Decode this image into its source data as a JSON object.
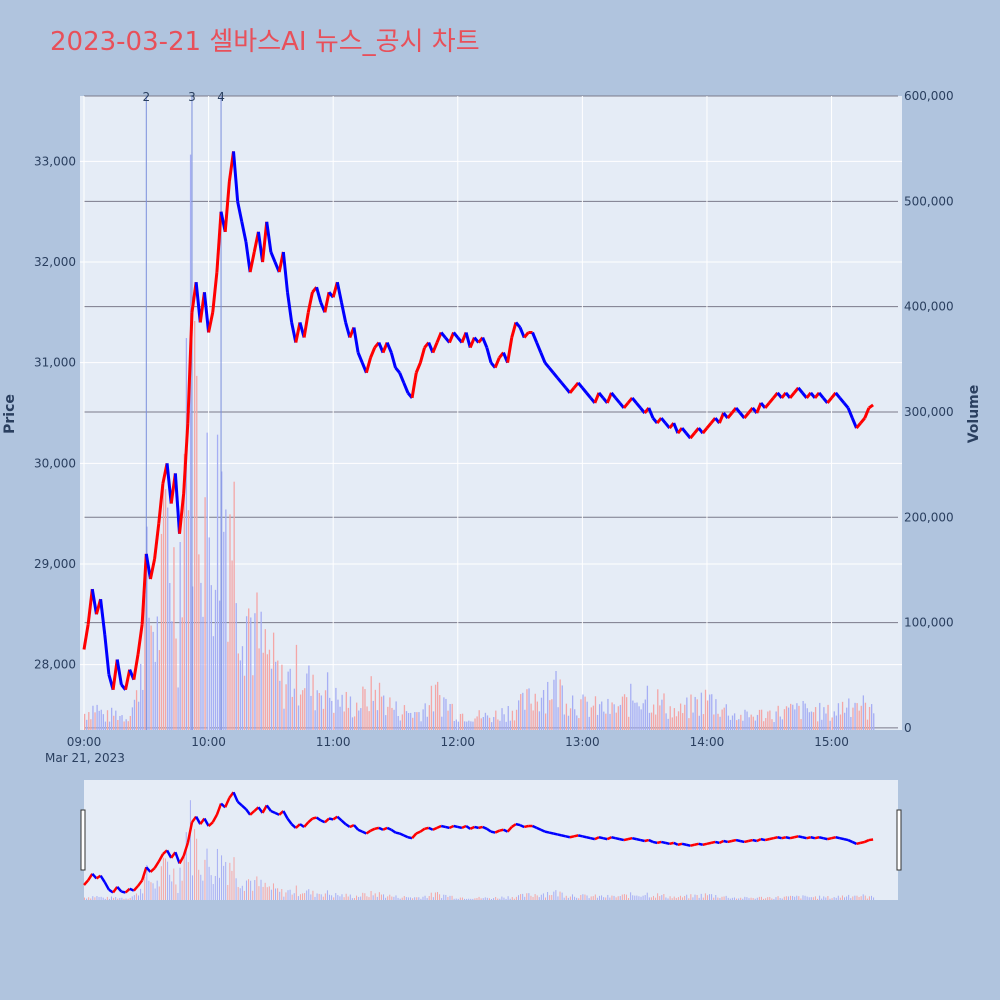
{
  "chart_data": {
    "type": "candlestick",
    "title": "2023-03-21 셀바스AI 뉴스_공시 차트",
    "ylabel": "Price",
    "y2label": "Volume",
    "date_label": "Mar 21, 2023",
    "x_ticks": [
      "09:00",
      "10:00",
      "11:00",
      "12:00",
      "13:00",
      "14:00",
      "15:00"
    ],
    "y_ticks": [
      28000,
      29000,
      30000,
      31000,
      32000,
      33000
    ],
    "y_tick_labels": [
      "28,000",
      "29,000",
      "30,000",
      "31,000",
      "32,000",
      "33,000"
    ],
    "y2_ticks": [
      0,
      100000,
      200000,
      300000,
      400000,
      500000,
      600000
    ],
    "y2_tick_labels": [
      "0",
      "100,000",
      "200,000",
      "300,000",
      "400,000",
      "500,000",
      "600,000"
    ],
    "ylim": [
      27350,
      33650
    ],
    "y2lim": [
      -2000,
      600000
    ],
    "x_range": [
      "09:00",
      "15:32"
    ],
    "up_color": "#ff0000",
    "down_color": "#0000ff",
    "news_markers": [
      {
        "label": "2",
        "time": "09:30"
      },
      {
        "label": "3",
        "time": "09:52"
      },
      {
        "label": "4",
        "time": "10:06"
      }
    ],
    "price_path": [
      [
        "09:00",
        28150
      ],
      [
        "09:02",
        28400
      ],
      [
        "09:04",
        28750
      ],
      [
        "09:06",
        28500
      ],
      [
        "09:08",
        28650
      ],
      [
        "09:10",
        28300
      ],
      [
        "09:12",
        27900
      ],
      [
        "09:14",
        27750
      ],
      [
        "09:16",
        28050
      ],
      [
        "09:18",
        27800
      ],
      [
        "09:20",
        27750
      ],
      [
        "09:22",
        27950
      ],
      [
        "09:24",
        27850
      ],
      [
        "09:26",
        28100
      ],
      [
        "09:28",
        28400
      ],
      [
        "09:30",
        29100
      ],
      [
        "09:32",
        28850
      ],
      [
        "09:34",
        29050
      ],
      [
        "09:36",
        29400
      ],
      [
        "09:38",
        29800
      ],
      [
        "09:40",
        30000
      ],
      [
        "09:42",
        29600
      ],
      [
        "09:44",
        29900
      ],
      [
        "09:46",
        29300
      ],
      [
        "09:48",
        29700
      ],
      [
        "09:50",
        30400
      ],
      [
        "09:52",
        31500
      ],
      [
        "09:54",
        31800
      ],
      [
        "09:56",
        31400
      ],
      [
        "09:58",
        31700
      ],
      [
        "10:00",
        31300
      ],
      [
        "10:02",
        31500
      ],
      [
        "10:04",
        31900
      ],
      [
        "10:06",
        32500
      ],
      [
        "10:08",
        32300
      ],
      [
        "10:10",
        32800
      ],
      [
        "10:12",
        33100
      ],
      [
        "10:14",
        32600
      ],
      [
        "10:16",
        32400
      ],
      [
        "10:18",
        32200
      ],
      [
        "10:20",
        31900
      ],
      [
        "10:22",
        32100
      ],
      [
        "10:24",
        32300
      ],
      [
        "10:26",
        32000
      ],
      [
        "10:28",
        32400
      ],
      [
        "10:30",
        32100
      ],
      [
        "10:32",
        32000
      ],
      [
        "10:34",
        31900
      ],
      [
        "10:36",
        32100
      ],
      [
        "10:38",
        31700
      ],
      [
        "10:40",
        31400
      ],
      [
        "10:42",
        31200
      ],
      [
        "10:44",
        31400
      ],
      [
        "10:46",
        31250
      ],
      [
        "10:48",
        31500
      ],
      [
        "10:50",
        31700
      ],
      [
        "10:52",
        31750
      ],
      [
        "10:54",
        31600
      ],
      [
        "10:56",
        31500
      ],
      [
        "10:58",
        31700
      ],
      [
        "11:00",
        31650
      ],
      [
        "11:02",
        31800
      ],
      [
        "11:04",
        31600
      ],
      [
        "11:06",
        31400
      ],
      [
        "11:08",
        31250
      ],
      [
        "11:10",
        31350
      ],
      [
        "11:12",
        31100
      ],
      [
        "11:14",
        31000
      ],
      [
        "11:16",
        30900
      ],
      [
        "11:18",
        31050
      ],
      [
        "11:20",
        31150
      ],
      [
        "11:22",
        31200
      ],
      [
        "11:24",
        31100
      ],
      [
        "11:26",
        31200
      ],
      [
        "11:28",
        31100
      ],
      [
        "11:30",
        30950
      ],
      [
        "11:32",
        30900
      ],
      [
        "11:34",
        30800
      ],
      [
        "11:36",
        30700
      ],
      [
        "11:38",
        30650
      ],
      [
        "11:40",
        30900
      ],
      [
        "11:42",
        31000
      ],
      [
        "11:44",
        31150
      ],
      [
        "11:46",
        31200
      ],
      [
        "11:48",
        31100
      ],
      [
        "11:50",
        31200
      ],
      [
        "11:52",
        31300
      ],
      [
        "11:54",
        31250
      ],
      [
        "11:56",
        31200
      ],
      [
        "11:58",
        31300
      ],
      [
        "12:00",
        31250
      ],
      [
        "12:02",
        31200
      ],
      [
        "12:04",
        31300
      ],
      [
        "12:06",
        31150
      ],
      [
        "12:08",
        31250
      ],
      [
        "12:10",
        31200
      ],
      [
        "12:12",
        31250
      ],
      [
        "12:14",
        31150
      ],
      [
        "12:16",
        31000
      ],
      [
        "12:18",
        30950
      ],
      [
        "12:20",
        31050
      ],
      [
        "12:22",
        31100
      ],
      [
        "12:24",
        31000
      ],
      [
        "12:26",
        31250
      ],
      [
        "12:28",
        31400
      ],
      [
        "12:30",
        31350
      ],
      [
        "12:32",
        31250
      ],
      [
        "12:34",
        31300
      ],
      [
        "12:36",
        31300
      ],
      [
        "12:38",
        31200
      ],
      [
        "12:40",
        31100
      ],
      [
        "12:42",
        31000
      ],
      [
        "12:44",
        30950
      ],
      [
        "12:46",
        30900
      ],
      [
        "12:48",
        30850
      ],
      [
        "12:50",
        30800
      ],
      [
        "12:52",
        30750
      ],
      [
        "12:54",
        30700
      ],
      [
        "12:56",
        30750
      ],
      [
        "12:58",
        30800
      ],
      [
        "13:00",
        30750
      ],
      [
        "13:02",
        30700
      ],
      [
        "13:04",
        30650
      ],
      [
        "13:06",
        30600
      ],
      [
        "13:08",
        30700
      ],
      [
        "13:10",
        30650
      ],
      [
        "13:12",
        30600
      ],
      [
        "13:14",
        30700
      ],
      [
        "13:16",
        30650
      ],
      [
        "13:18",
        30600
      ],
      [
        "13:20",
        30550
      ],
      [
        "13:22",
        30600
      ],
      [
        "13:24",
        30650
      ],
      [
        "13:26",
        30600
      ],
      [
        "13:28",
        30550
      ],
      [
        "13:30",
        30500
      ],
      [
        "13:32",
        30550
      ],
      [
        "13:34",
        30450
      ],
      [
        "13:36",
        30400
      ],
      [
        "13:38",
        30450
      ],
      [
        "13:40",
        30400
      ],
      [
        "13:42",
        30350
      ],
      [
        "13:44",
        30400
      ],
      [
        "13:46",
        30300
      ],
      [
        "13:48",
        30350
      ],
      [
        "13:50",
        30300
      ],
      [
        "13:52",
        30250
      ],
      [
        "13:54",
        30300
      ],
      [
        "13:56",
        30350
      ],
      [
        "13:58",
        30300
      ],
      [
        "14:00",
        30350
      ],
      [
        "14:02",
        30400
      ],
      [
        "14:04",
        30450
      ],
      [
        "14:06",
        30400
      ],
      [
        "14:08",
        30500
      ],
      [
        "14:10",
        30450
      ],
      [
        "14:12",
        30500
      ],
      [
        "14:14",
        30550
      ],
      [
        "14:16",
        30500
      ],
      [
        "14:18",
        30450
      ],
      [
        "14:20",
        30500
      ],
      [
        "14:22",
        30550
      ],
      [
        "14:24",
        30500
      ],
      [
        "14:26",
        30600
      ],
      [
        "14:28",
        30550
      ],
      [
        "14:30",
        30600
      ],
      [
        "14:32",
        30650
      ],
      [
        "14:34",
        30700
      ],
      [
        "14:36",
        30650
      ],
      [
        "14:38",
        30700
      ],
      [
        "14:40",
        30650
      ],
      [
        "14:42",
        30700
      ],
      [
        "14:44",
        30750
      ],
      [
        "14:46",
        30700
      ],
      [
        "14:48",
        30650
      ],
      [
        "14:50",
        30700
      ],
      [
        "14:52",
        30650
      ],
      [
        "14:54",
        30700
      ],
      [
        "14:56",
        30650
      ],
      [
        "14:58",
        30600
      ],
      [
        "15:00",
        30650
      ],
      [
        "15:02",
        30700
      ],
      [
        "15:04",
        30650
      ],
      [
        "15:06",
        30600
      ],
      [
        "15:08",
        30550
      ],
      [
        "15:10",
        30450
      ],
      [
        "15:12",
        30350
      ],
      [
        "15:14",
        30400
      ],
      [
        "15:16",
        30450
      ],
      [
        "15:18",
        30550
      ],
      [
        "15:20",
        30580
      ]
    ],
    "volume_peaks": [
      [
        "09:00",
        20000
      ],
      [
        "09:05",
        30000
      ],
      [
        "09:10",
        15000
      ],
      [
        "09:15",
        20000
      ],
      [
        "09:20",
        15000
      ],
      [
        "09:25",
        40000
      ],
      [
        "09:30",
        180000
      ],
      [
        "09:35",
        120000
      ],
      [
        "09:40",
        290000
      ],
      [
        "09:45",
        150000
      ],
      [
        "09:50",
        580000
      ],
      [
        "09:55",
        370000
      ],
      [
        "10:00",
        270000
      ],
      [
        "10:05",
        310000
      ],
      [
        "10:10",
        320000
      ],
      [
        "10:15",
        200000
      ],
      [
        "10:20",
        150000
      ],
      [
        "10:25",
        110000
      ],
      [
        "10:30",
        90000
      ],
      [
        "10:35",
        60000
      ],
      [
        "10:40",
        70000
      ],
      [
        "10:45",
        80000
      ],
      [
        "10:50",
        50000
      ],
      [
        "10:55",
        60000
      ],
      [
        "11:00",
        40000
      ],
      [
        "11:10",
        30000
      ],
      [
        "11:20",
        50000
      ],
      [
        "11:30",
        25000
      ],
      [
        "11:40",
        20000
      ],
      [
        "11:50",
        45000
      ],
      [
        "12:00",
        20000
      ],
      [
        "12:15",
        15000
      ],
      [
        "12:30",
        30000
      ],
      [
        "12:45",
        60000
      ],
      [
        "13:00",
        30000
      ],
      [
        "13:15",
        25000
      ],
      [
        "13:30",
        50000
      ],
      [
        "13:45",
        20000
      ],
      [
        "14:00",
        40000
      ],
      [
        "14:15",
        15000
      ],
      [
        "14:30",
        20000
      ],
      [
        "14:45",
        25000
      ],
      [
        "15:00",
        20000
      ],
      [
        "15:10",
        40000
      ],
      [
        "15:20",
        20000
      ]
    ]
  }
}
